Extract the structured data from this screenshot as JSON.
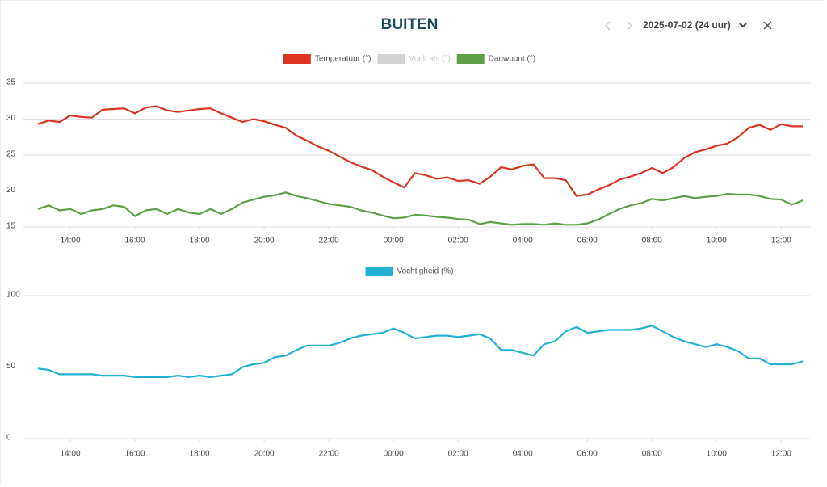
{
  "header": {
    "title": "BUITEN",
    "period": "2025-07-02 (24 uur)"
  },
  "chart_data": [
    {
      "type": "line",
      "legend": "top",
      "grid": true,
      "x": [
        "13:00",
        "13:20",
        "13:40",
        "14:00",
        "14:20",
        "14:40",
        "15:00",
        "15:20",
        "15:40",
        "16:00",
        "16:20",
        "16:40",
        "17:00",
        "17:20",
        "17:40",
        "18:00",
        "18:20",
        "18:40",
        "19:00",
        "19:20",
        "19:40",
        "20:00",
        "20:20",
        "20:40",
        "21:00",
        "21:20",
        "21:40",
        "22:00",
        "22:20",
        "22:40",
        "23:00",
        "23:20",
        "23:40",
        "00:00",
        "00:20",
        "00:40",
        "01:00",
        "01:20",
        "01:40",
        "02:00",
        "02:20",
        "02:40",
        "03:00",
        "03:20",
        "03:40",
        "04:00",
        "04:20",
        "04:40",
        "05:00",
        "05:20",
        "05:40",
        "06:00",
        "06:20",
        "06:40",
        "07:00",
        "07:20",
        "07:40",
        "08:00",
        "08:20",
        "08:40",
        "09:00",
        "09:20",
        "09:40",
        "10:00",
        "10:20",
        "10:40",
        "11:00",
        "11:20",
        "11:40",
        "12:00",
        "12:20",
        "12:40"
      ],
      "xticks": [
        "14:00",
        "16:00",
        "18:00",
        "20:00",
        "22:00",
        "00:00",
        "02:00",
        "04:00",
        "06:00",
        "08:00",
        "10:00",
        "12:00"
      ],
      "ylim": [
        15,
        35
      ],
      "yticks": [
        15,
        20,
        25,
        30,
        35
      ],
      "series": [
        {
          "name": "Temperatuur (°)",
          "color": "#dd3322",
          "values": [
            29.3,
            29.8,
            29.6,
            30.5,
            30.3,
            30.2,
            31.3,
            31.4,
            31.5,
            30.8,
            31.6,
            31.8,
            31.2,
            31.0,
            31.2,
            31.4,
            31.5,
            30.8,
            30.2,
            29.6,
            30.0,
            29.7,
            29.2,
            28.8,
            27.7,
            27.0,
            26.2,
            25.6,
            24.8,
            24.0,
            23.4,
            22.9,
            22.0,
            21.2,
            20.5,
            22.5,
            22.2,
            21.7,
            21.9,
            21.4,
            21.5,
            21.0,
            22.0,
            23.3,
            23.0,
            23.5,
            23.7,
            21.8,
            21.8,
            21.5,
            19.3,
            19.5,
            20.2,
            20.8,
            21.6,
            22.0,
            22.5,
            23.2,
            22.5,
            23.3,
            24.6,
            25.4,
            25.8,
            26.3,
            26.6,
            27.5,
            28.8,
            29.2,
            28.5,
            29.3,
            29.0,
            29.0
          ]
        },
        {
          "name": "Voelt als (°)",
          "color": "#d3d3d3",
          "hidden": true
        },
        {
          "name": "Dauwpunt (°)",
          "color": "#5ea04a",
          "values": [
            17.5,
            18.0,
            17.3,
            17.5,
            16.8,
            17.3,
            17.5,
            18.0,
            17.8,
            16.5,
            17.3,
            17.5,
            16.8,
            17.5,
            17.0,
            16.8,
            17.5,
            16.8,
            17.5,
            18.4,
            18.8,
            19.2,
            19.4,
            19.8,
            19.3,
            19.0,
            18.6,
            18.2,
            18.0,
            17.8,
            17.3,
            17.0,
            16.6,
            16.2,
            16.3,
            16.7,
            16.6,
            16.4,
            16.3,
            16.1,
            16.0,
            15.4,
            15.7,
            15.5,
            15.3,
            15.4,
            15.4,
            15.3,
            15.5,
            15.3,
            15.3,
            15.5,
            16.0,
            16.8,
            17.5,
            18.0,
            18.3,
            18.9,
            18.7,
            19.0,
            19.3,
            19.0,
            19.2,
            19.3,
            19.6,
            19.5,
            19.5,
            19.3,
            18.9,
            18.8,
            18.1,
            18.7
          ]
        }
      ]
    },
    {
      "type": "line",
      "legend": "top",
      "grid": true,
      "x": [
        "13:00",
        "13:20",
        "13:40",
        "14:00",
        "14:20",
        "14:40",
        "15:00",
        "15:20",
        "15:40",
        "16:00",
        "16:20",
        "16:40",
        "17:00",
        "17:20",
        "17:40",
        "18:00",
        "18:20",
        "18:40",
        "19:00",
        "19:20",
        "19:40",
        "20:00",
        "20:20",
        "20:40",
        "21:00",
        "21:20",
        "21:40",
        "22:00",
        "22:20",
        "22:40",
        "23:00",
        "23:20",
        "23:40",
        "00:00",
        "00:20",
        "00:40",
        "01:00",
        "01:20",
        "01:40",
        "02:00",
        "02:20",
        "02:40",
        "03:00",
        "03:20",
        "03:40",
        "04:00",
        "04:20",
        "04:40",
        "05:00",
        "05:20",
        "05:40",
        "06:00",
        "06:20",
        "06:40",
        "07:00",
        "07:20",
        "07:40",
        "08:00",
        "08:20",
        "08:40",
        "09:00",
        "09:20",
        "09:40",
        "10:00",
        "10:20",
        "10:40",
        "11:00",
        "11:20",
        "11:40",
        "12:00",
        "12:20",
        "12:40"
      ],
      "xticks": [
        "14:00",
        "16:00",
        "18:00",
        "20:00",
        "22:00",
        "00:00",
        "02:00",
        "04:00",
        "06:00",
        "08:00",
        "10:00",
        "12:00"
      ],
      "ylim": [
        0,
        100
      ],
      "yticks": [
        0,
        50,
        100
      ],
      "series": [
        {
          "name": "Vochtigheid (%)",
          "color": "#22b0d4",
          "values": [
            49,
            48,
            45,
            45,
            45,
            45,
            44,
            44,
            44,
            43,
            43,
            43,
            43,
            44,
            43,
            44,
            43,
            44,
            45,
            50,
            52,
            53,
            57,
            58,
            62,
            65,
            65,
            65,
            67,
            70,
            72,
            73,
            74,
            77,
            74,
            70,
            71,
            72,
            72,
            71,
            72,
            73,
            70,
            62,
            62,
            60,
            58,
            66,
            68,
            75,
            78,
            74,
            75,
            76,
            76,
            76,
            77,
            79,
            75,
            71,
            68,
            66,
            64,
            66,
            64,
            61,
            56,
            56,
            52,
            52,
            52,
            54
          ]
        }
      ]
    }
  ]
}
